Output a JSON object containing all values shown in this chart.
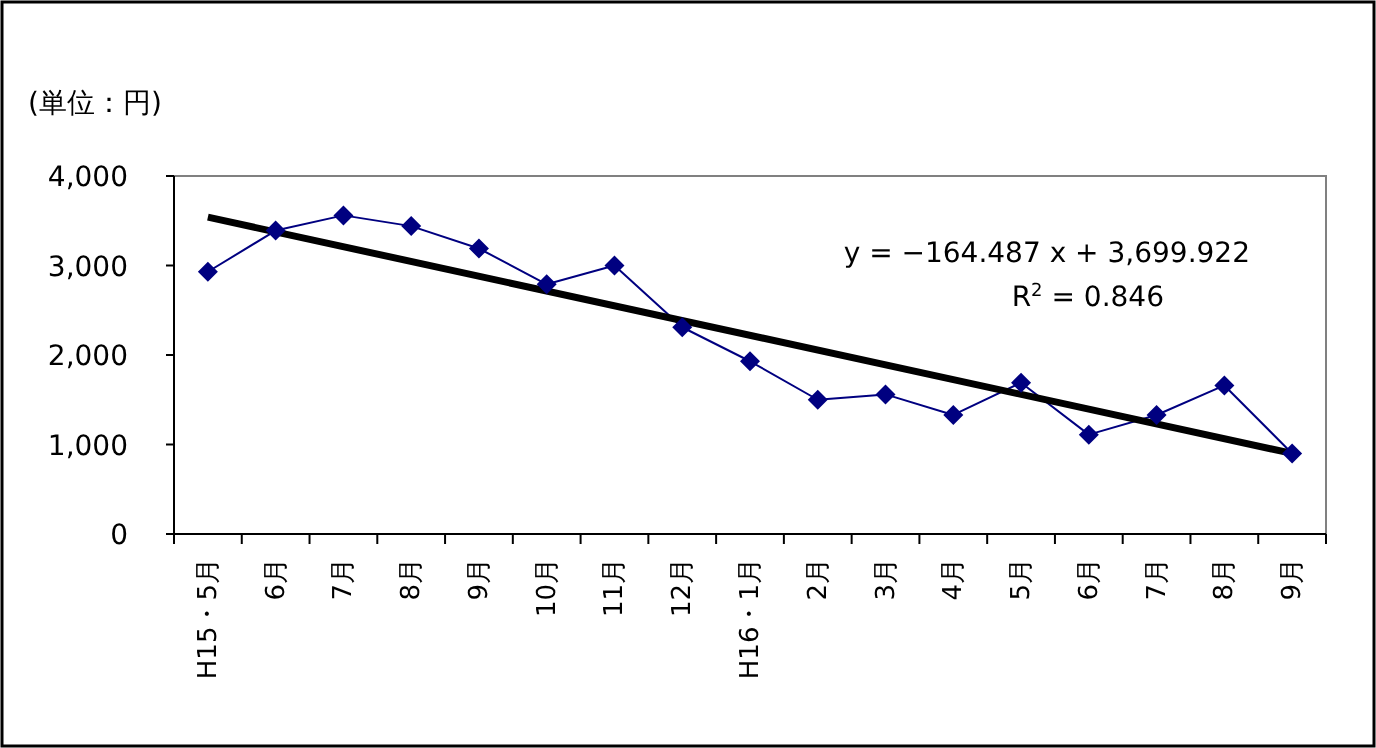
{
  "chart_data": {
    "type": "line",
    "ylabel": "(単位：円)",
    "categories": [
      "H15・5月",
      "6月",
      "7月",
      "8月",
      "9月",
      "10月",
      "11月",
      "12月",
      "H16・1月",
      "2月",
      "3月",
      "4月",
      "5月",
      "6月",
      "7月",
      "8月",
      "9月"
    ],
    "series": [
      {
        "color": "#000080",
        "marker": "diamond",
        "values": [
          2930,
          3390,
          3560,
          3440,
          3190,
          2790,
          3000,
          2310,
          1930,
          1500,
          1560,
          1330,
          1690,
          1110,
          1330,
          1660,
          900
        ]
      },
      {
        "type": "line",
        "color": "#000000",
        "marker": "none",
        "values": [
          3540,
          null,
          null,
          null,
          null,
          null,
          null,
          null,
          null,
          null,
          null,
          null,
          null,
          null,
          null,
          null,
          900
        ]
      }
    ],
    "ylim": [
      0,
      4000
    ],
    "yticks": [
      {
        "value": 0,
        "label": "0"
      },
      {
        "value": 1000,
        "label": "1,000"
      },
      {
        "value": 2000,
        "label": "2,000"
      },
      {
        "value": 3000,
        "label": "3,000"
      },
      {
        "value": 4000,
        "label": "4,000"
      }
    ],
    "annotations": [
      "y = −164.487 x + 3,699.922",
      "R$^{2}$ = 0.846"
    ],
    "grid": false
  }
}
